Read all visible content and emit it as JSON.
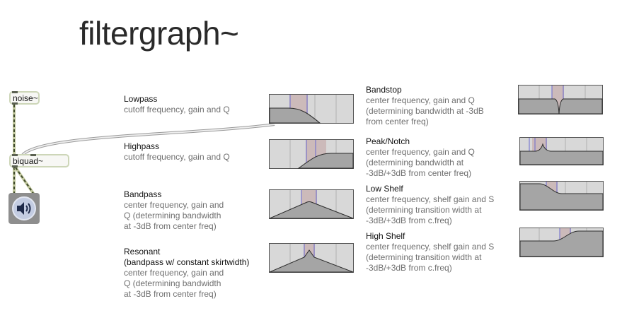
{
  "title": "filtergraph~",
  "objects": {
    "noise": "noise~",
    "biquad": "biquad~"
  },
  "dac": {
    "icon": "speaker-icon"
  },
  "filters": [
    {
      "id": "lowpass",
      "name": "Lowpass",
      "lines": [
        "cutoff frequency, gain and Q"
      ]
    },
    {
      "id": "highpass",
      "name": "Highpass",
      "lines": [
        "cutoff frequency, gain and Q"
      ]
    },
    {
      "id": "bandpass",
      "name": "Bandpass",
      "lines": [
        "center frequency, gain and",
        "Q (determining bandwidth",
        "at -3dB from center freq)"
      ]
    },
    {
      "id": "resonant",
      "name": "Resonant",
      "lines": [
        "(bandpass w/ constant skirtwidth)",
        "center frequency, gain and",
        "Q (determining bandwidth",
        "at -3dB from center freq)"
      ]
    },
    {
      "id": "bandstop",
      "name": "Bandstop",
      "lines": [
        "center frequency, gain and Q",
        "(determining bandwidth at -3dB",
        "from center freq)"
      ]
    },
    {
      "id": "peaknotch",
      "name": "Peak/Notch",
      "lines": [
        "center frequency, gain and Q",
        "(determining bandwidth at",
        "-3dB/+3dB from center freq)"
      ]
    },
    {
      "id": "lowshelf",
      "name": "Low Shelf",
      "lines": [
        "center frequency, shelf gain and S",
        "(determining transition width at",
        "-3dB/+3dB from c.freq)"
      ]
    },
    {
      "id": "highshelf",
      "name": "High Shelf",
      "lines": [
        "center frequency, shelf gain and S",
        "(determining transition width at",
        "-3dB/+3dB from c.freq)"
      ]
    }
  ],
  "colors": {
    "graph_bg": "#d8d8d8",
    "graph_fill": "#a9a9a9",
    "graph_band": "#c9b3b3",
    "graph_blue": "#6a6ad0",
    "patch_cord": "#c8cfb0"
  }
}
